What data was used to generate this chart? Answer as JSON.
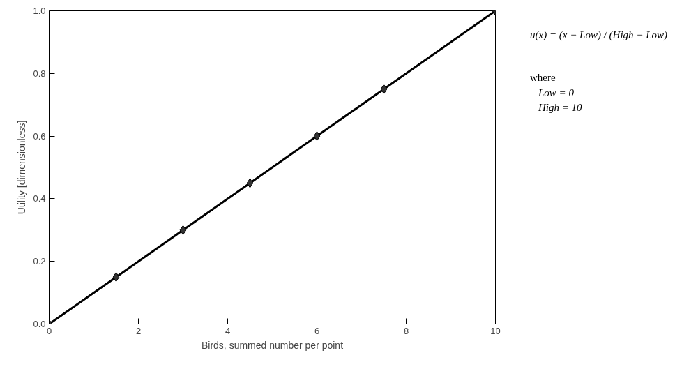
{
  "chart_data": {
    "type": "line",
    "xlabel": "Birds, summed number per point",
    "ylabel": "Utility [dimensionless]",
    "x": [
      0,
      1.5,
      3,
      4.5,
      6,
      7.5,
      10
    ],
    "series": [
      {
        "color": "#000000",
        "values": [
          0,
          0.15,
          0.3,
          0.45,
          0.6,
          0.75,
          1.0
        ]
      }
    ],
    "xlim": [
      0,
      10
    ],
    "ylim": [
      0,
      1
    ],
    "xticks": [
      0,
      2,
      4,
      6,
      8,
      10
    ],
    "yticks": [
      {
        "value": 0,
        "label": "0.0"
      },
      {
        "value": 0.2,
        "label": "0.2"
      },
      {
        "value": 0.4,
        "label": "0.4"
      },
      {
        "value": 0.6,
        "label": "0.6"
      },
      {
        "value": 0.8,
        "label": "0.8"
      },
      {
        "value": 1.0,
        "label": "1.0"
      }
    ],
    "marker": "diamond",
    "line_style": "solid",
    "annotations": [
      "u(x) = (x − Low) / (High − Low)",
      "where",
      "Low = 0",
      "High = 10"
    ]
  }
}
